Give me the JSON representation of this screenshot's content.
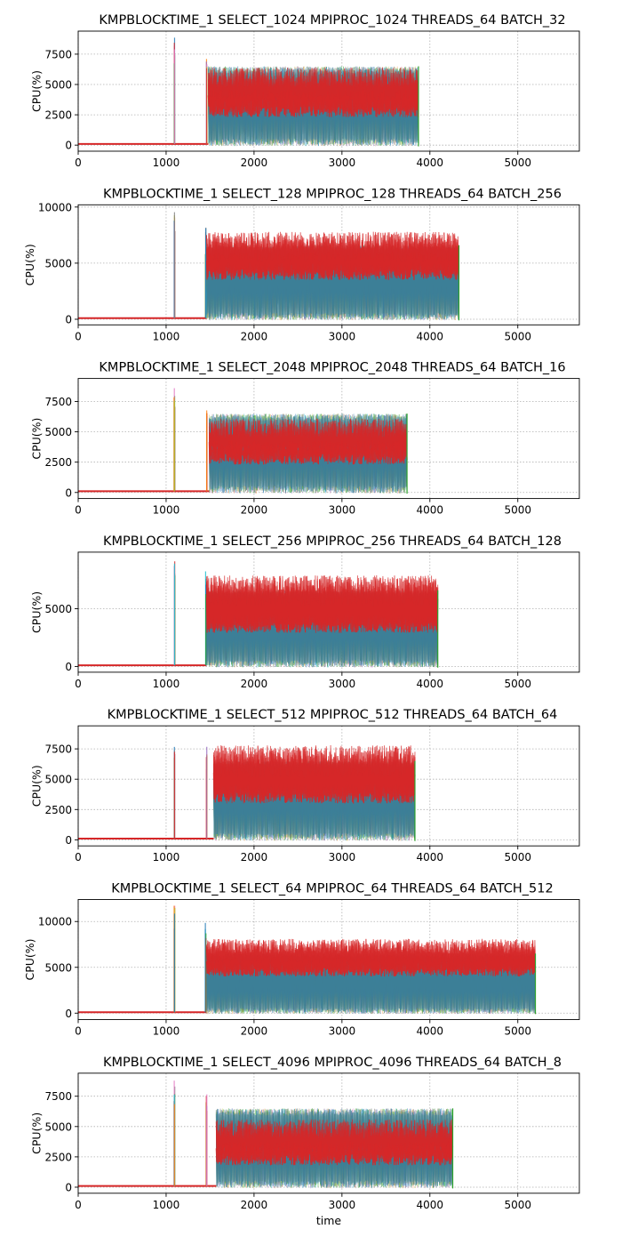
{
  "colors": {
    "series": [
      "#1f77b4",
      "#ff7f0e",
      "#2ca02c",
      "#9467bd",
      "#8c564b",
      "#e377c2",
      "#7f7f7f",
      "#bcbd22",
      "#17becf",
      "#d62728"
    ],
    "top": "#d62728"
  },
  "chart_data": [
    {
      "type": "line",
      "title": "KMPBLOCKTIME_1 SELECT_1024 MPIPROC_1024 THREADS_64 BATCH_32",
      "xlabel": "",
      "ylabel": "CPU(%)",
      "xlim": [
        0,
        5700
      ],
      "ylim": [
        -500,
        9400
      ],
      "xticks": [
        0,
        1000,
        2000,
        3000,
        4000,
        5000
      ],
      "yticks": [
        0,
        2500,
        5000,
        7500
      ],
      "grid": true,
      "profile": {
        "idle_end": 1090,
        "spike1": [
          1090,
          1100
        ],
        "spike1_peak": 8900,
        "spike2": 1460,
        "spike2_peak": 7800,
        "busy_start": 1480,
        "busy_end": 3870,
        "plateau": 6500,
        "band": [
          2300,
          4600
        ],
        "baseline": 100
      }
    },
    {
      "type": "line",
      "title": "KMPBLOCKTIME_1 SELECT_128 MPIPROC_128 THREADS_64 BATCH_256",
      "xlabel": "",
      "ylabel": "CPU(%)",
      "xlim": [
        0,
        5700
      ],
      "ylim": [
        -500,
        10200
      ],
      "xticks": [
        0,
        1000,
        2000,
        3000,
        4000,
        5000
      ],
      "yticks": [
        0,
        5000,
        10000
      ],
      "grid": true,
      "profile": {
        "idle_end": 1090,
        "spike1": [
          1090,
          1100
        ],
        "spike1_peak": 9600,
        "spike2": 1450,
        "spike2_peak": 8200,
        "busy_start": 1460,
        "busy_end": 4330,
        "plateau": 6600,
        "band": [
          3500,
          6000
        ],
        "baseline": 100
      }
    },
    {
      "type": "line",
      "title": "KMPBLOCKTIME_1 SELECT_2048 MPIPROC_2048 THREADS_64 BATCH_16",
      "xlabel": "",
      "ylabel": "CPU(%)",
      "xlim": [
        0,
        5700
      ],
      "ylim": [
        -500,
        9400
      ],
      "xticks": [
        0,
        1000,
        2000,
        3000,
        4000,
        5000
      ],
      "yticks": [
        0,
        2500,
        5000,
        7500
      ],
      "grid": true,
      "profile": {
        "idle_end": 1090,
        "spike1": [
          1090,
          1100
        ],
        "spike1_peak": 8900,
        "spike2": 1460,
        "spike2_peak": 7800,
        "busy_start": 1490,
        "busy_end": 3740,
        "plateau": 6500,
        "band": [
          2300,
          4300
        ],
        "baseline": 100
      }
    },
    {
      "type": "line",
      "title": "KMPBLOCKTIME_1 SELECT_256 MPIPROC_256 THREADS_64 BATCH_128",
      "xlabel": "",
      "ylabel": "CPU(%)",
      "xlim": [
        0,
        5700
      ],
      "ylim": [
        -500,
        9900
      ],
      "xticks": [
        0,
        1000,
        2000,
        3000,
        4000,
        5000
      ],
      "yticks": [
        0,
        5000
      ],
      "grid": true,
      "profile": {
        "idle_end": 1090,
        "spike1": [
          1090,
          1100
        ],
        "spike1_peak": 9300,
        "spike2": 1450,
        "spike2_peak": 8400,
        "busy_start": 1460,
        "busy_end": 4090,
        "plateau": 6600,
        "band": [
          2900,
          6100
        ],
        "baseline": 100
      }
    },
    {
      "type": "line",
      "title": "KMPBLOCKTIME_1 SELECT_512 MPIPROC_512 THREADS_64 BATCH_64",
      "xlabel": "",
      "ylabel": "CPU(%)",
      "xlim": [
        0,
        5700
      ],
      "ylim": [
        -500,
        9400
      ],
      "xticks": [
        0,
        1000,
        2000,
        3000,
        4000,
        5000
      ],
      "yticks": [
        0,
        2500,
        5000,
        7500
      ],
      "grid": true,
      "profile": {
        "idle_end": 1090,
        "spike1": [
          1090,
          1100
        ],
        "spike1_peak": 8900,
        "spike2": 1460,
        "spike2_peak": 8300,
        "busy_start": 1540,
        "busy_end": 3830,
        "plateau": 6500,
        "band": [
          3000,
          6000
        ],
        "baseline": 100
      }
    },
    {
      "type": "line",
      "title": "KMPBLOCKTIME_1 SELECT_64 MPIPROC_64 THREADS_64 BATCH_512",
      "xlabel": "",
      "ylabel": "CPU(%)",
      "xlim": [
        0,
        5700
      ],
      "ylim": [
        -700,
        12400
      ],
      "xticks": [
        0,
        1000,
        2000,
        3000,
        4000,
        5000
      ],
      "yticks": [
        0,
        5000,
        10000
      ],
      "grid": true,
      "profile": {
        "idle_end": 1090,
        "spike1": [
          1090,
          1100
        ],
        "spike1_peak": 11800,
        "spike2": 1450,
        "spike2_peak": 10200,
        "busy_start": 1460,
        "busy_end": 5200,
        "plateau": 6500,
        "band": [
          4000,
          6300
        ],
        "baseline": 100
      }
    },
    {
      "type": "line",
      "title": "KMPBLOCKTIME_1 SELECT_4096 MPIPROC_4096 THREADS_64 BATCH_8",
      "xlabel": "time",
      "ylabel": "CPU(%)",
      "xlim": [
        0,
        5700
      ],
      "ylim": [
        -500,
        9400
      ],
      "xticks": [
        0,
        1000,
        2000,
        3000,
        4000,
        5000
      ],
      "yticks": [
        0,
        2500,
        5000,
        7500
      ],
      "grid": true,
      "profile": {
        "idle_end": 1090,
        "spike1": [
          1090,
          1100
        ],
        "spike1_peak": 8800,
        "spike2": 1460,
        "spike2_peak": 7800,
        "busy_start": 1570,
        "busy_end": 4260,
        "plateau": 6500,
        "band": [
          1800,
          3800
        ],
        "baseline": 100
      }
    }
  ]
}
